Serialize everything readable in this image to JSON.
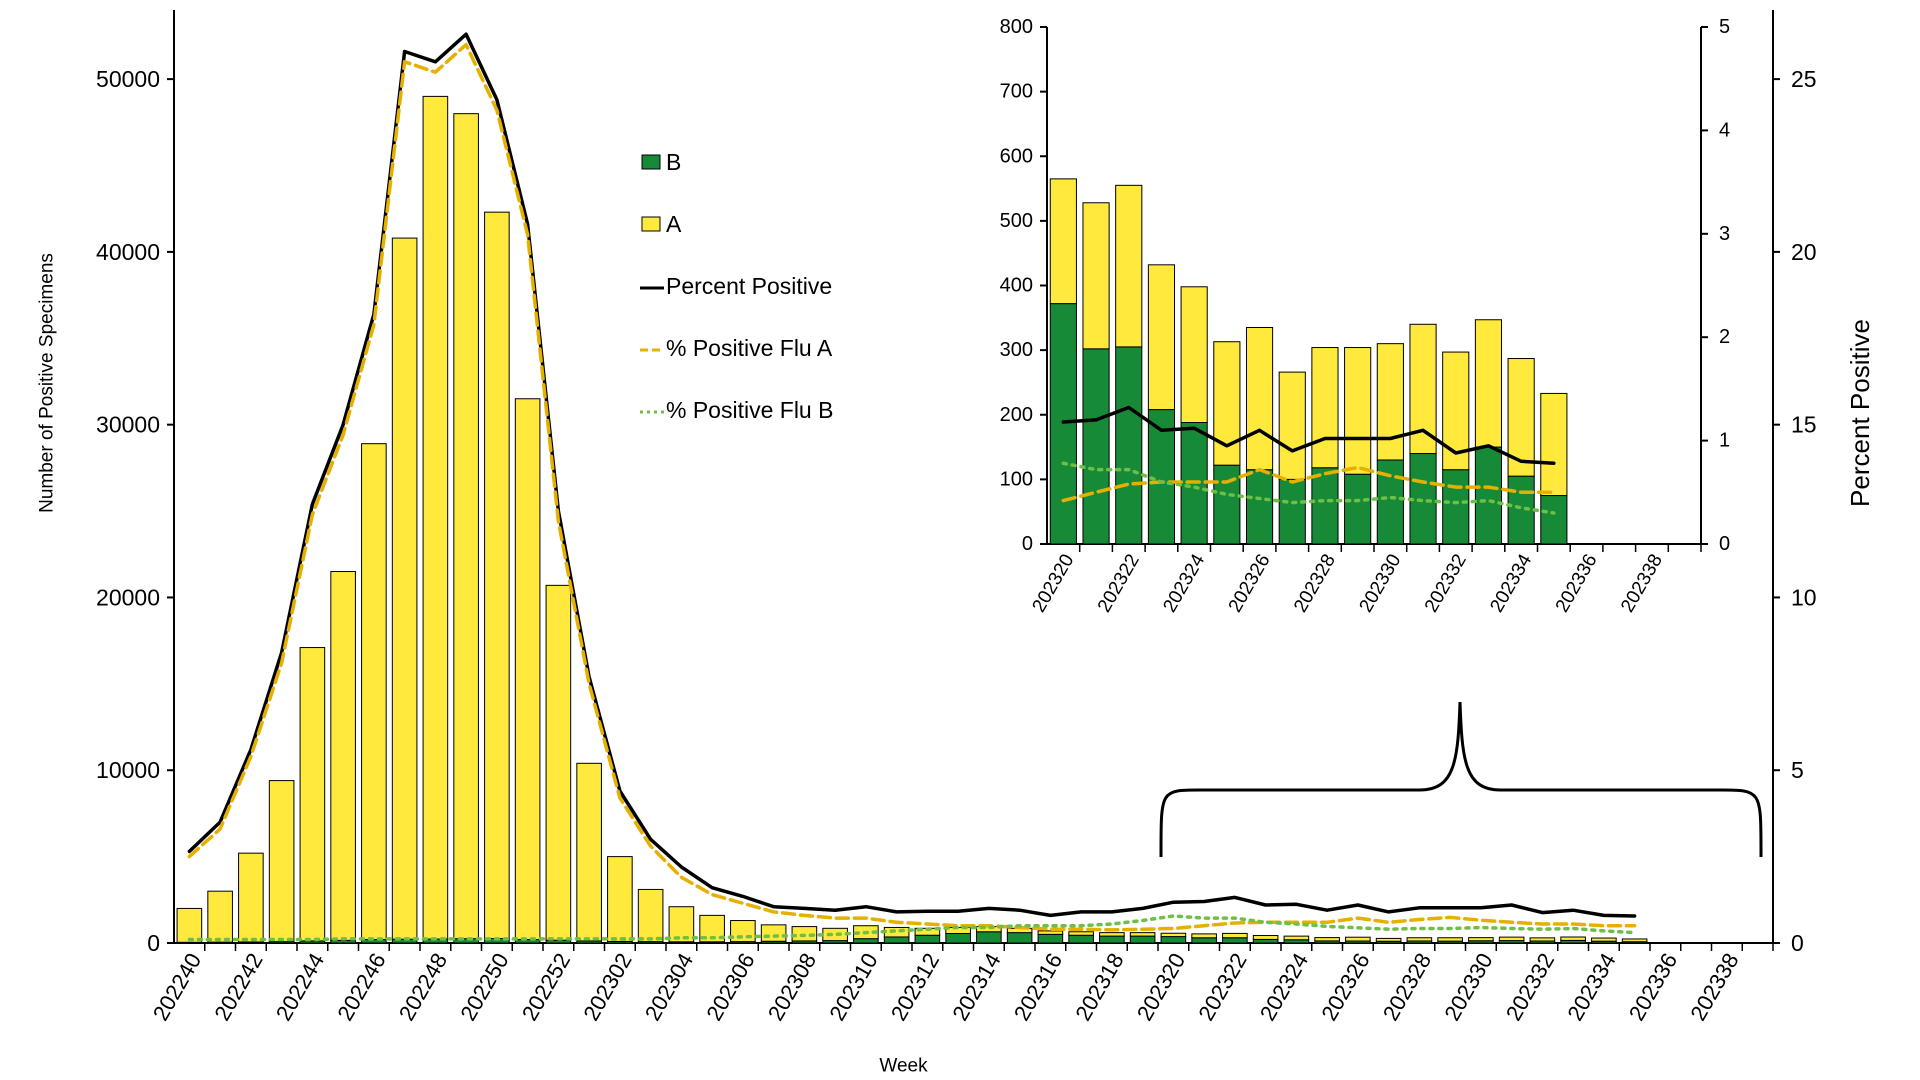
{
  "chart_data": [
    {
      "type": "bar",
      "stacked": true,
      "legend": true,
      "x_label": "Week",
      "y_label": "Number of Positive Specimens",
      "y2_label": "Percent Positive",
      "categories": [
        "202240",
        null,
        "202242",
        null,
        "202244",
        null,
        "202246",
        null,
        "202248",
        null,
        "202250",
        null,
        "202252",
        null,
        "202302",
        null,
        "202304",
        null,
        "202306",
        null,
        "202308",
        null,
        "202310",
        null,
        "202312",
        null,
        "202314",
        null,
        "202316",
        null,
        "202318",
        null,
        "202320",
        null,
        "202322",
        null,
        "202324",
        null,
        "202326",
        null,
        "202328",
        null,
        "202330",
        null,
        "202332",
        null,
        "202334",
        null,
        "202336",
        null,
        "202338",
        null
      ],
      "ylim": [
        0,
        54000
      ],
      "yticks": [
        0,
        10000,
        20000,
        30000,
        40000,
        50000
      ],
      "y2lim": [
        0,
        27
      ],
      "y2ticks": [
        0,
        5,
        10,
        15,
        20,
        25
      ],
      "series": [
        {
          "name": "B",
          "type": "bar",
          "color": "#178a37",
          "values": [
            40,
            50,
            60,
            80,
            120,
            150,
            200,
            220,
            230,
            250,
            260,
            200,
            160,
            120,
            90,
            80,
            70,
            70,
            80,
            100,
            120,
            140,
            250,
            350,
            450,
            550,
            650,
            600,
            500,
            450,
            400,
            400,
            372,
            302,
            305,
            208,
            188,
            122,
            115,
            100,
            118,
            108,
            130,
            140,
            115,
            150,
            105,
            75,
            null,
            null,
            null,
            null
          ]
        },
        {
          "name": "A",
          "type": "bar",
          "color": "#ffe93d",
          "values": [
            1960,
            2950,
            5140,
            9320,
            16980,
            21350,
            28700,
            40580,
            48770,
            47750,
            42040,
            31300,
            20540,
            10280,
            4910,
            3020,
            2030,
            1530,
            1220,
            950,
            830,
            710,
            750,
            550,
            400,
            350,
            300,
            250,
            200,
            200,
            200,
            200,
            193,
            226,
            250,
            224,
            210,
            191,
            220,
            166,
            186,
            196,
            180,
            200,
            182,
            197,
            182,
            158,
            null,
            null,
            null,
            null
          ]
        },
        {
          "name": "Percent Positive",
          "type": "line",
          "dash": "solid",
          "axis": "y2",
          "color": "#000000",
          "values": [
            2.65,
            3.5,
            5.6,
            8.4,
            12.7,
            15.0,
            18.2,
            25.8,
            25.5,
            26.3,
            24.4,
            20.8,
            12.5,
            7.7,
            4.4,
            3.0,
            2.2,
            1.6,
            1.35,
            1.05,
            1.0,
            0.95,
            1.05,
            0.9,
            0.92,
            0.92,
            1.0,
            0.95,
            0.8,
            0.9,
            0.9,
            1.0,
            1.18,
            1.2,
            1.32,
            1.1,
            1.12,
            0.95,
            1.1,
            0.9,
            1.02,
            1.02,
            1.02,
            1.1,
            0.88,
            0.95,
            0.8,
            0.78,
            null,
            null,
            null,
            null
          ]
        },
        {
          "name": "% Positive Flu A",
          "type": "line",
          "dash": "dashed",
          "axis": "y2",
          "color": "#e6b000",
          "values": [
            2.5,
            3.3,
            5.4,
            8.1,
            12.4,
            14.7,
            17.9,
            25.5,
            25.2,
            26.0,
            24.1,
            20.5,
            12.2,
            7.5,
            4.2,
            2.8,
            1.9,
            1.4,
            1.15,
            0.9,
            0.8,
            0.72,
            0.72,
            0.6,
            0.55,
            0.5,
            0.5,
            0.45,
            0.4,
            0.4,
            0.38,
            0.4,
            0.42,
            0.5,
            0.58,
            0.6,
            0.6,
            0.6,
            0.72,
            0.6,
            0.68,
            0.74,
            0.66,
            0.6,
            0.55,
            0.55,
            0.5,
            0.5,
            null,
            null,
            null,
            null
          ]
        },
        {
          "name": "% Positive Flu B",
          "type": "line",
          "dash": "dotted",
          "axis": "y2",
          "color": "#6dbf45",
          "values": [
            0.1,
            0.1,
            0.1,
            0.1,
            0.1,
            0.12,
            0.12,
            0.12,
            0.12,
            0.12,
            0.12,
            0.12,
            0.12,
            0.12,
            0.12,
            0.12,
            0.15,
            0.15,
            0.18,
            0.2,
            0.22,
            0.25,
            0.3,
            0.35,
            0.4,
            0.45,
            0.45,
            0.5,
            0.5,
            0.5,
            0.55,
            0.65,
            0.78,
            0.72,
            0.72,
            0.6,
            0.55,
            0.48,
            0.44,
            0.4,
            0.42,
            0.42,
            0.45,
            0.42,
            0.4,
            0.42,
            0.35,
            0.3,
            null,
            null,
            null,
            null
          ]
        }
      ]
    },
    {
      "type": "bar",
      "stacked": true,
      "legend": false,
      "categories": [
        "202320",
        null,
        "202322",
        null,
        "202324",
        null,
        "202326",
        null,
        "202328",
        null,
        "202330",
        null,
        "202332",
        null,
        "202334",
        null,
        "202336",
        null,
        "202338",
        null
      ],
      "ylim": [
        0,
        800
      ],
      "yticks": [
        0,
        100,
        200,
        300,
        400,
        500,
        600,
        700,
        800
      ],
      "y2lim": [
        0,
        5
      ],
      "y2ticks": [
        0,
        1,
        2,
        3,
        4,
        5
      ],
      "series": [
        {
          "type": "bar",
          "color": "#178a37",
          "values": [
            372,
            302,
            305,
            208,
            188,
            122,
            115,
            100,
            118,
            108,
            130,
            140,
            115,
            150,
            105,
            75,
            null,
            null,
            null,
            null
          ]
        },
        {
          "type": "bar",
          "color": "#ffe93d",
          "values": [
            193,
            226,
            250,
            224,
            210,
            191,
            220,
            166,
            186,
            196,
            180,
            200,
            182,
            197,
            182,
            158,
            null,
            null,
            null,
            null
          ]
        },
        {
          "type": "line",
          "dash": "solid",
          "axis": "y2",
          "color": "#000000",
          "values": [
            1.18,
            1.2,
            1.32,
            1.1,
            1.12,
            0.95,
            1.1,
            0.9,
            1.02,
            1.02,
            1.02,
            1.1,
            0.88,
            0.95,
            0.8,
            0.78,
            null,
            null,
            null,
            null
          ]
        },
        {
          "type": "line",
          "dash": "dashed",
          "axis": "y2",
          "color": "#e6b000",
          "values": [
            0.42,
            0.5,
            0.58,
            0.6,
            0.6,
            0.6,
            0.72,
            0.6,
            0.68,
            0.74,
            0.66,
            0.6,
            0.55,
            0.55,
            0.5,
            0.5,
            null,
            null,
            null,
            null
          ]
        },
        {
          "type": "line",
          "dash": "dotted",
          "axis": "y2",
          "color": "#6dbf45",
          "values": [
            0.78,
            0.72,
            0.72,
            0.6,
            0.55,
            0.48,
            0.44,
            0.4,
            0.42,
            0.42,
            0.45,
            0.42,
            0.4,
            0.42,
            0.35,
            0.3,
            null,
            null,
            null,
            null
          ]
        }
      ]
    }
  ]
}
